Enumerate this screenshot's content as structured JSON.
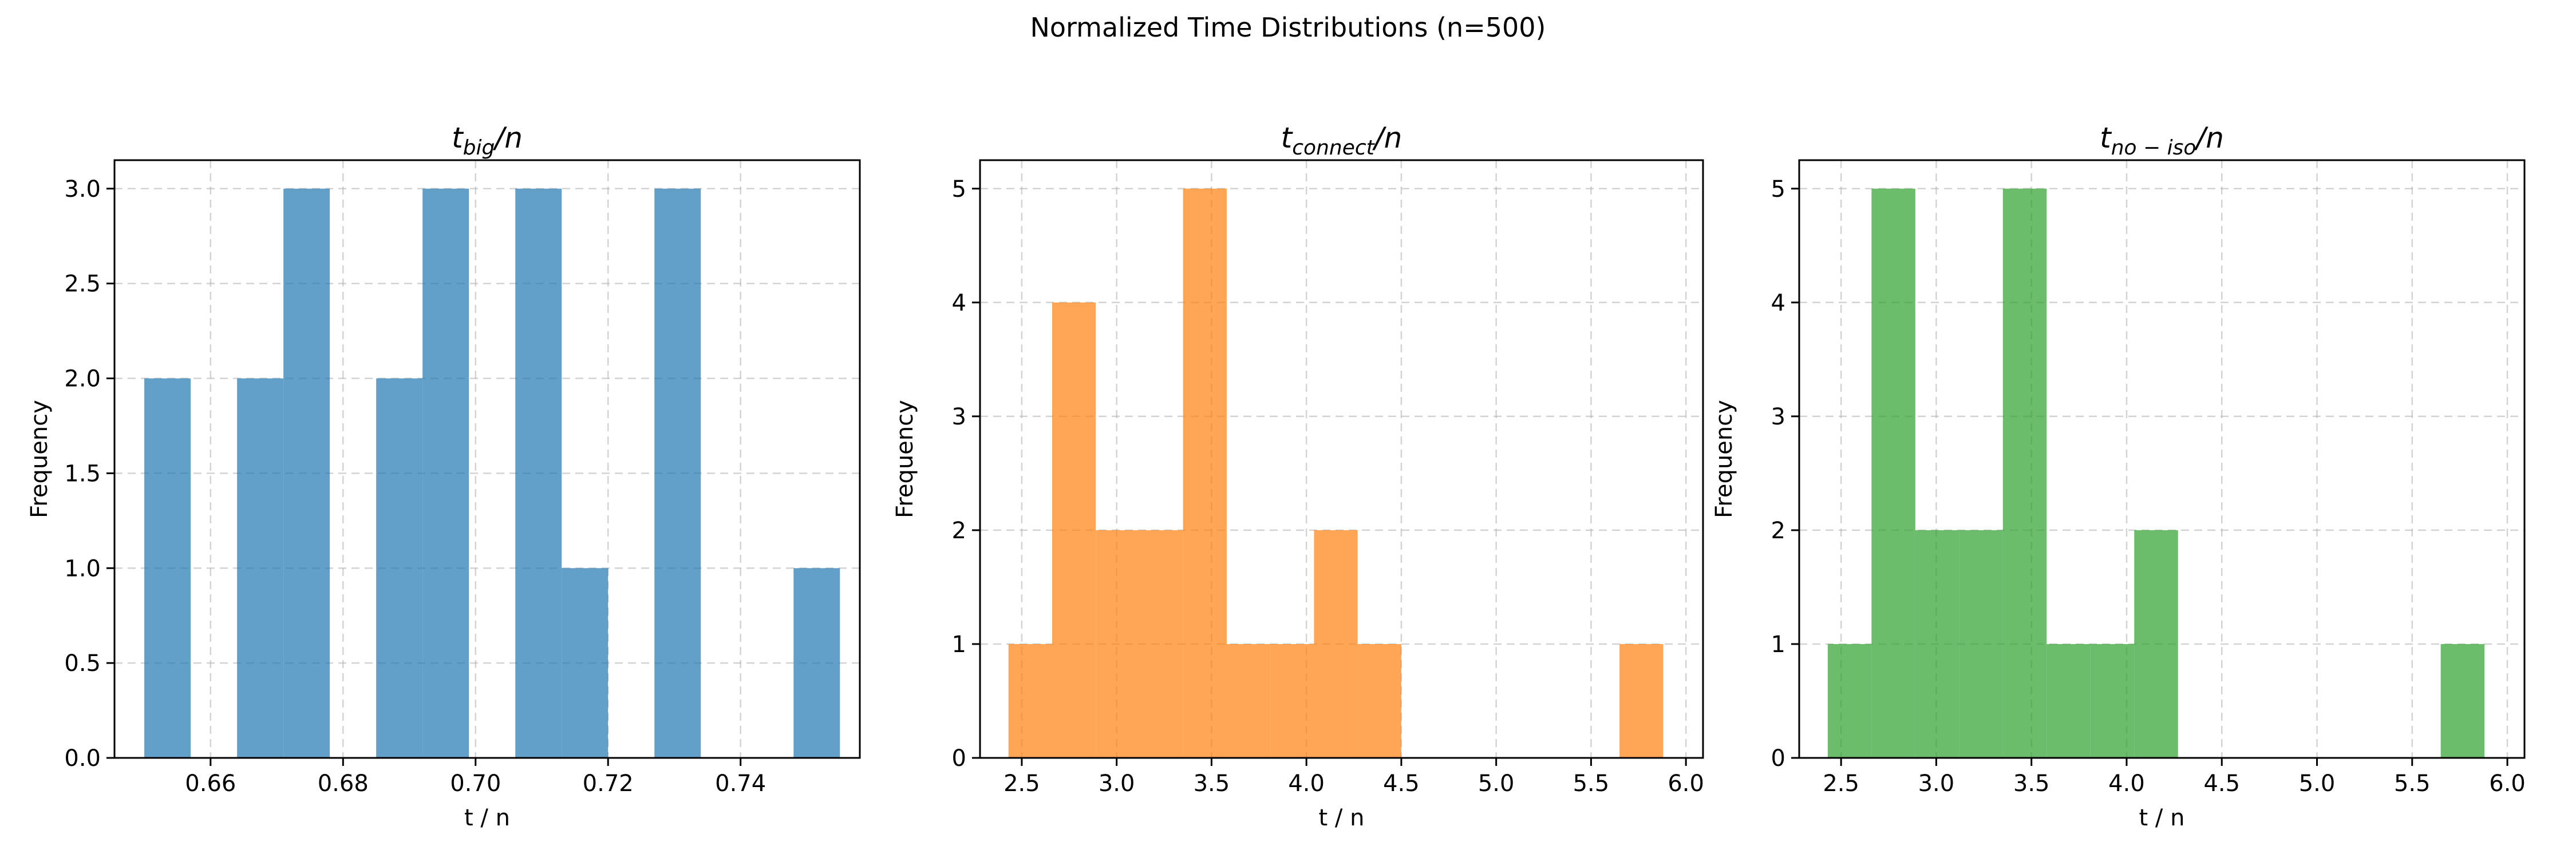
{
  "figure": {
    "suptitle": "Normalized Time Distributions (n=500)"
  },
  "chart_data": [
    {
      "type": "bar",
      "title": "t_big/n",
      "title_base": "t",
      "title_sub": "big",
      "title_rest": "/n",
      "xlabel": "t / n",
      "ylabel": "Frequency",
      "color": "#1f77b4",
      "xlim": [
        0.6455,
        0.758
      ],
      "ylim": [
        0,
        3.15
      ],
      "xticks": [
        0.66,
        0.68,
        0.7,
        0.72,
        0.74
      ],
      "xtick_labels": [
        "0.66",
        "0.68",
        "0.70",
        "0.72",
        "0.74"
      ],
      "yticks": [
        0,
        0.5,
        1.0,
        1.5,
        2.0,
        2.5,
        3.0
      ],
      "ytick_labels": [
        "0.0",
        "0.5",
        "1.0",
        "1.5",
        "2.0",
        "2.5",
        "3.0"
      ],
      "bin_edges": [
        0.65,
        0.657,
        0.664,
        0.671,
        0.678,
        0.685,
        0.692,
        0.699,
        0.706,
        0.713,
        0.72,
        0.727,
        0.734,
        0.741,
        0.748,
        0.755
      ],
      "values": [
        2,
        0,
        2,
        3,
        0,
        2,
        3,
        0,
        3,
        1,
        0,
        3,
        0,
        0,
        1
      ],
      "grid": true
    },
    {
      "type": "bar",
      "title": "t_connect/n",
      "title_base": "t",
      "title_sub": "connect",
      "title_rest": "/n",
      "xlabel": "t / n",
      "ylabel": "Frequency",
      "color": "#ff7f0e",
      "xlim": [
        2.28,
        6.09
      ],
      "ylim": [
        0,
        5.25
      ],
      "xticks": [
        2.5,
        3.0,
        3.5,
        4.0,
        4.5,
        5.0,
        5.5,
        6.0
      ],
      "xtick_labels": [
        "2.5",
        "3.0",
        "3.5",
        "4.0",
        "4.5",
        "5.0",
        "5.5",
        "6.0"
      ],
      "yticks": [
        0,
        1,
        2,
        3,
        4,
        5
      ],
      "ytick_labels": [
        "0",
        "1",
        "2",
        "3",
        "4",
        "5"
      ],
      "bin_edges": [
        2.43,
        2.66,
        2.89,
        3.12,
        3.35,
        3.58,
        3.81,
        4.04,
        4.27,
        4.5,
        4.73,
        4.96,
        5.19,
        5.42,
        5.65,
        5.88
      ],
      "values": [
        1,
        4,
        2,
        2,
        5,
        1,
        1,
        2,
        1,
        0,
        0,
        0,
        0,
        0,
        1
      ],
      "grid": true
    },
    {
      "type": "bar",
      "title": "t_no-iso/n",
      "title_base": "t",
      "title_sub": "no − iso",
      "title_rest": "/n",
      "xlabel": "t / n",
      "ylabel": "Frequency",
      "color": "#2ca02c",
      "xlim": [
        2.28,
        6.09
      ],
      "ylim": [
        0,
        5.25
      ],
      "xticks": [
        2.5,
        3.0,
        3.5,
        4.0,
        4.5,
        5.0,
        5.5,
        6.0
      ],
      "xtick_labels": [
        "2.5",
        "3.0",
        "3.5",
        "4.0",
        "4.5",
        "5.0",
        "5.5",
        "6.0"
      ],
      "yticks": [
        0,
        1,
        2,
        3,
        4,
        5
      ],
      "ytick_labels": [
        "0",
        "1",
        "2",
        "3",
        "4",
        "5"
      ],
      "bin_edges": [
        2.43,
        2.66,
        2.89,
        3.12,
        3.35,
        3.58,
        3.81,
        4.04,
        4.27,
        4.5,
        4.73,
        4.96,
        5.19,
        5.42,
        5.65,
        5.88
      ],
      "values": [
        1,
        5,
        2,
        2,
        5,
        1,
        1,
        2,
        0,
        0,
        0,
        0,
        0,
        0,
        1
      ],
      "grid": true
    }
  ]
}
